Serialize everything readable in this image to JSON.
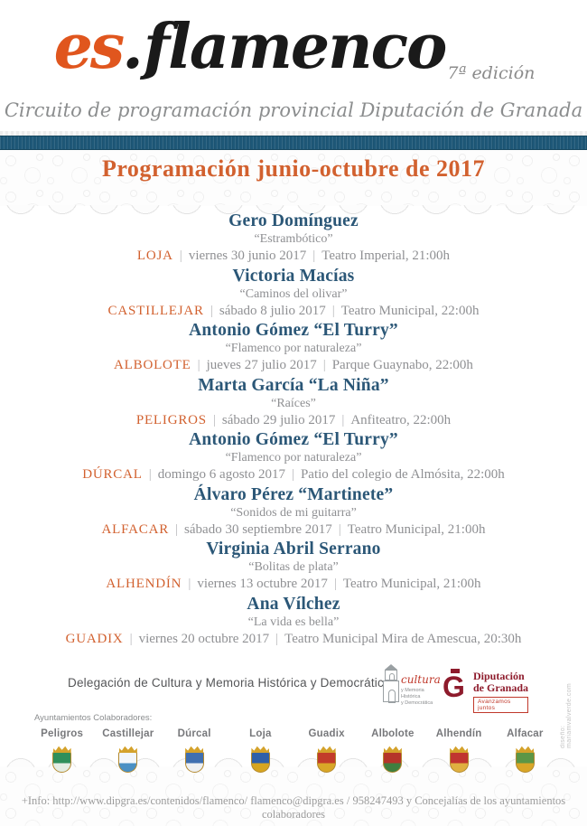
{
  "meta": {
    "separator": "|"
  },
  "colors": {
    "accent_orange": "#d2612f",
    "logo_orange": "#e0561e",
    "artist_blue": "#2b5777",
    "teal_bar": "#1e5878",
    "gray_text": "#8f9093",
    "dipgra_red": "#8e1b2c"
  },
  "header": {
    "logo_es": "es",
    "logo_dot": ".",
    "logo_word": "flamenco",
    "logo_edition": "7ª edición",
    "tagline": "Circuito de programación provincial Diputación de Granada"
  },
  "banner": {
    "title": "Programación junio-octubre de 2017"
  },
  "events": [
    {
      "artist": "Gero Domínguez",
      "show": "“Estrambótico”",
      "town": "LOJA",
      "date": "viernes 30 junio 2017",
      "venue": "Teatro Imperial, 21:00h"
    },
    {
      "artist": "Victoria Macías",
      "show": "“Caminos del olivar”",
      "town": "CASTILLEJAR",
      "date": "sábado 8 julio 2017",
      "venue": "Teatro Municipal, 22:00h"
    },
    {
      "artist": "Antonio Gómez “El Turry”",
      "show": "“Flamenco por naturaleza”",
      "town": "ALBOLOTE",
      "date": "jueves 27 julio 2017",
      "venue": "Parque Guaynabo, 22:00h"
    },
    {
      "artist": "Marta García “La Niña”",
      "show": "“Raíces”",
      "town": "PELIGROS",
      "date": "sábado 29 julio 2017",
      "venue": "Anfiteatro, 22:00h"
    },
    {
      "artist": "Antonio Gómez “El Turry”",
      "show": "“Flamenco por naturaleza”",
      "town": "DÚRCAL",
      "date": "domingo 6 agosto 2017",
      "venue": "Patio del colegio de Almósita, 22:00h"
    },
    {
      "artist": "Álvaro Pérez “Martinete”",
      "show": "“Sonidos de mi guitarra”",
      "town": "ALFACAR",
      "date": "sábado 30 septiembre 2017",
      "venue": "Teatro Municipal, 21:00h"
    },
    {
      "artist": "Virginia Abril Serrano",
      "show": "“Bolitas de plata”",
      "town": "ALHENDÍN",
      "date": "viernes 13 octubre 2017",
      "venue": "Teatro Municipal, 21:00h"
    },
    {
      "artist": "Ana Vílchez",
      "show": "“La vida es bella”",
      "town": "GUADIX",
      "date": "viernes 20 octubre 2017",
      "venue": "Teatro Municipal Mira de Amescua, 20:30h"
    }
  ],
  "footer": {
    "delegation": "Delegación de Cultura y Memoria Histórica y Democrática",
    "cultura_logo": {
      "script": "cultura",
      "line1": "y Memoria Histórica",
      "line2": "y Democrática"
    },
    "dipgra_logo": {
      "g": "G",
      "line1": "Diputación",
      "line2": "de Granada",
      "badge": "Avanzamos juntos"
    },
    "collaborators_label": "Ayuntamientos Colaboradores:",
    "towns": [
      {
        "name": "Peligros",
        "crest_top": "#2f8f5b",
        "crest_bottom": "#e4ede4"
      },
      {
        "name": "Castillejar",
        "crest_top": "#f2f6fa",
        "crest_bottom": "#4a90c4"
      },
      {
        "name": "Dúrcal",
        "crest_top": "#3f6fb0",
        "crest_bottom": "#eef0f2"
      },
      {
        "name": "Loja",
        "crest_top": "#2f5fa8",
        "crest_bottom": "#d7a520"
      },
      {
        "name": "Guadix",
        "crest_top": "#c23b2a",
        "crest_bottom": "#d9a627"
      },
      {
        "name": "Albolote",
        "crest_top": "#b5342a",
        "crest_bottom": "#3f7f3f"
      },
      {
        "name": "Alhendín",
        "crest_top": "#c03430",
        "crest_bottom": "#e0b040"
      },
      {
        "name": "Alfacar",
        "crest_top": "#5c9646",
        "crest_bottom": "#d9a627"
      }
    ],
    "info_line": "+Info: http://www.dipgra.es/contenidos/flamenco/ flamenco@dipgra.es / 958247493 y Concejalías de los ayuntamientos colaboradores",
    "credit": "diseño: mariamvalverde.com"
  }
}
